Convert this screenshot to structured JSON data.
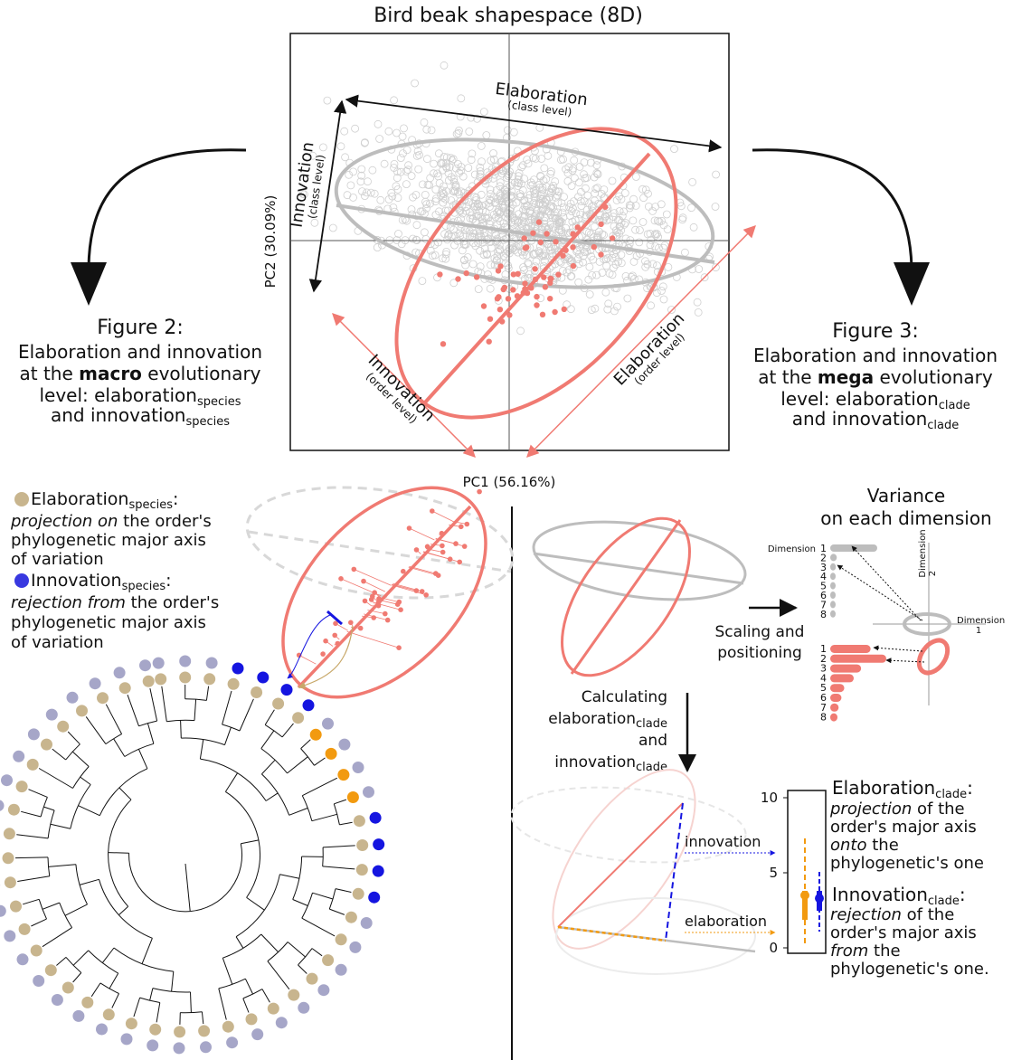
{
  "title": "Bird beak shapespace (8D)",
  "scatter": {
    "pc1_label": "PC1 (56.16%)",
    "pc2_label": "PC2 (30.09%)",
    "class_elaboration": "Elaboration",
    "class_elaboration_sub": "(class level)",
    "class_innovation": "Innovation",
    "class_innovation_sub": "(class level)",
    "order_innovation": "Innovation",
    "order_innovation_sub": "(order level)",
    "order_elaboration": "Elaboration",
    "order_elaboration_sub": "(order level)"
  },
  "figure2": {
    "heading": "Figure 2:",
    "line1": "Elaboration and innovation",
    "line2_pre": "at the ",
    "line2_bold": "macro",
    "line2_post": " evolutionary",
    "line3_pre": "level: elaboration",
    "line3_sub": "species",
    "line4_pre": "and innovation",
    "line4_sub": "species"
  },
  "figure3": {
    "heading": "Figure 3:",
    "line1": "Elaboration and innovation",
    "line2_pre": "at the ",
    "line2_bold": "mega",
    "line2_post": " evolutionary",
    "line3_pre": "level: elaboration",
    "line3_sub": "clade",
    "line4_pre": "and innovation",
    "line4_sub": "clade"
  },
  "species_legend": {
    "elab_title": "Elaboration",
    "elab_sub": "species",
    "elab_colon": ":",
    "elab_line1_ital": "projection on",
    "elab_line1_rest": " the order's",
    "elab_line2": "phylogenetic major axis",
    "elab_line3": "of variation",
    "innov_title": "Innovation",
    "innov_sub": "species",
    "innov_colon": ":",
    "innov_line1_ital": "rejection from",
    "innov_line1_rest": " the order's",
    "innov_line2": "phylogenetic major axis",
    "innov_line3": "of variation"
  },
  "variance": {
    "title_line1": "Variance",
    "title_line2": "on each dimension",
    "dimension_label": "Dimension",
    "dim_numbers": [
      "1",
      "2",
      "3",
      "4",
      "5",
      "6",
      "7",
      "8"
    ],
    "axis1_label": "Dimension",
    "axis1_num": "1",
    "axis2_label": "Dimension",
    "axis2_num": "2",
    "grey_bar_lengths": [
      1.0,
      0.14,
      0.12,
      0.1,
      0.09,
      0.08,
      0.07,
      0.06
    ],
    "red_bar_lengths": [
      0.72,
      1.0,
      0.55,
      0.42,
      0.25,
      0.2,
      0.15,
      0.1
    ]
  },
  "process": {
    "scaling_line1": "Scaling and",
    "scaling_line2": "positioning",
    "calc_line1": "Calculating",
    "calc_line2_pre": "elaboration",
    "calc_line2_sub": "clade",
    "calc_line3": "and",
    "calc_line4_pre": "innovation",
    "calc_line4_sub": "clade",
    "innovation_label": "innovation",
    "elaboration_label": "elaboration"
  },
  "clade_plot": {
    "ticks": [
      "10",
      "5",
      "0"
    ],
    "elaboration_median": 3.5,
    "innovation_median": 3.3
  },
  "clade_legend": {
    "elab_title": "Elaboration",
    "elab_sub": "clade",
    "elab_colon": ":",
    "elab_line1_ital": "projection",
    "elab_line1_rest": " of the",
    "elab_line2": "order's major axis",
    "elab_line3_ital": "onto",
    "elab_line3_rest": " the",
    "elab_line4": "phylogenetic's one",
    "innov_title": "Innovation",
    "innov_sub": "clade",
    "innov_colon": ":",
    "innov_line1_ital": "rejection",
    "innov_line1_rest": " of the",
    "innov_line2": "order's major axis",
    "innov_line3_ital": "from",
    "innov_line3_rest": " the",
    "innov_line4": "phylogenetic's one."
  },
  "colors": {
    "salmon": "#f07a72",
    "grey": "#bfbfbf",
    "tan": "#c8b58e",
    "lavender": "#a6a6c8",
    "blue": "#1515e0",
    "orange": "#f29a10"
  }
}
